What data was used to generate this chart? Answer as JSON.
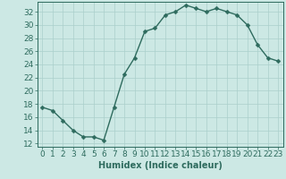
{
  "x": [
    0,
    1,
    2,
    3,
    4,
    5,
    6,
    7,
    8,
    9,
    10,
    11,
    12,
    13,
    14,
    15,
    16,
    17,
    18,
    19,
    20,
    21,
    22,
    23
  ],
  "y": [
    17.5,
    17,
    15.5,
    14,
    13,
    13,
    12.5,
    17.5,
    22.5,
    25,
    29,
    29.5,
    31.5,
    32,
    33,
    32.5,
    32,
    32.5,
    32,
    31.5,
    30,
    27,
    25,
    24.5
  ],
  "line_color": "#2e6b5e",
  "marker": "D",
  "markersize": 2.5,
  "bg_color": "#cce8e4",
  "grid_color": "#aacfcb",
  "xlabel": "Humidex (Indice chaleur)",
  "xlabel_fontsize": 7,
  "ylabel_ticks": [
    12,
    14,
    16,
    18,
    20,
    22,
    24,
    26,
    28,
    30,
    32
  ],
  "xlim": [
    -0.5,
    23.5
  ],
  "ylim": [
    11.5,
    33.5
  ],
  "tick_fontsize": 6.5,
  "linewidth": 1.0
}
